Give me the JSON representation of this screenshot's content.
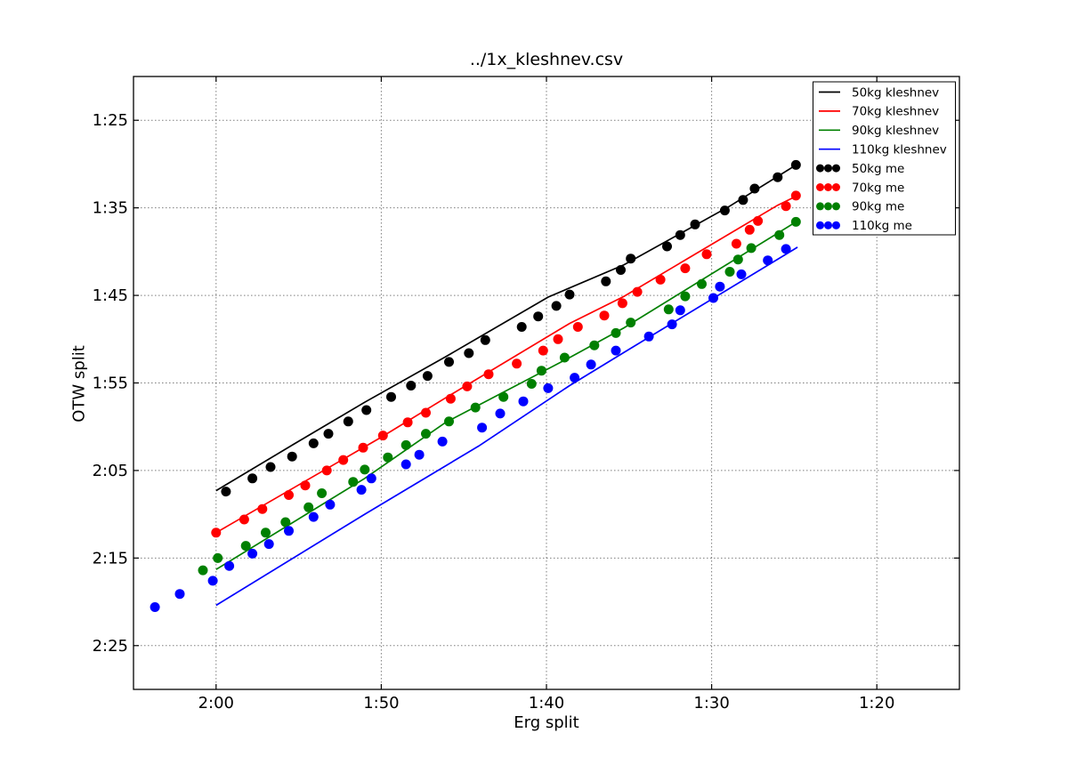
{
  "figure": {
    "background_color": "#ffffff",
    "axes_frame_color": "#000000",
    "grid_style": "dotted"
  },
  "chart_data": {
    "type": "line",
    "title": "../1x_kleshnev.csv",
    "xlabel": "Erg split",
    "ylabel": "OTW split",
    "grid": true,
    "legend_position": "upper right",
    "x_axis": {
      "min": 75,
      "max": 125,
      "reversed": true,
      "unit": "seconds per 500m",
      "ticks": [
        {
          "value": 120,
          "label": "2:00"
        },
        {
          "value": 110,
          "label": "1:50"
        },
        {
          "value": 100,
          "label": "1:40"
        },
        {
          "value": 90,
          "label": "1:30"
        },
        {
          "value": 80,
          "label": "1:20"
        }
      ]
    },
    "y_axis": {
      "min": 80,
      "max": 150,
      "unit": "seconds per 500m",
      "ticks": [
        {
          "value": 85,
          "label": "1:25"
        },
        {
          "value": 95,
          "label": "1:35"
        },
        {
          "value": 105,
          "label": "1:45"
        },
        {
          "value": 115,
          "label": "1:55"
        },
        {
          "value": 125,
          "label": "2:05"
        },
        {
          "value": 135,
          "label": "2:15"
        },
        {
          "value": 145,
          "label": "2:25"
        }
      ]
    },
    "series": [
      {
        "name": "50kg kleshnev",
        "type": "line",
        "color": "#000000",
        "points": [
          [
            120,
            127.3
          ],
          [
            115.3,
            122.0
          ],
          [
            111,
            117.2
          ],
          [
            106.1,
            112.0
          ],
          [
            99.9,
            105.2
          ],
          [
            95.3,
            101.5
          ],
          [
            88.9,
            94.8
          ],
          [
            84.8,
            90.0
          ]
        ]
      },
      {
        "name": "70kg kleshnev",
        "type": "line",
        "color": "#ff0000",
        "points": [
          [
            120,
            132.1
          ],
          [
            110,
            121.2
          ],
          [
            106.1,
            116.7
          ],
          [
            98.6,
            108.2
          ],
          [
            95.3,
            105.1
          ],
          [
            86,
            94.7
          ],
          [
            84.8,
            93.6
          ]
        ]
      },
      {
        "name": "90kg kleshnev",
        "type": "line",
        "color": "#008000",
        "points": [
          [
            120,
            136.3
          ],
          [
            111,
            125.9
          ],
          [
            106.1,
            119.5
          ],
          [
            98.6,
            112.1
          ],
          [
            95.3,
            108.7
          ],
          [
            84.8,
            96.5
          ]
        ]
      },
      {
        "name": "110kg kleshnev",
        "type": "line",
        "color": "#0000ff",
        "points": [
          [
            120,
            140.4
          ],
          [
            111,
            130.0
          ],
          [
            104.1,
            122.2
          ],
          [
            98.6,
            115.3
          ],
          [
            95.3,
            111.5
          ],
          [
            84.8,
            99.5
          ]
        ]
      },
      {
        "name": "50kg me",
        "type": "scatter",
        "color": "#000000",
        "points": [
          [
            119.4,
            127.4
          ],
          [
            117.8,
            125.9
          ],
          [
            116.7,
            124.6
          ],
          [
            115.4,
            123.4
          ],
          [
            114.1,
            121.9
          ],
          [
            113.2,
            120.8
          ],
          [
            112.0,
            119.4
          ],
          [
            110.9,
            118.1
          ],
          [
            109.4,
            116.6
          ],
          [
            108.2,
            115.3
          ],
          [
            107.2,
            114.2
          ],
          [
            105.9,
            112.6
          ],
          [
            104.7,
            111.6
          ],
          [
            103.7,
            110.1
          ],
          [
            101.5,
            108.6
          ],
          [
            100.5,
            107.4
          ],
          [
            99.4,
            106.2
          ],
          [
            98.6,
            104.9
          ],
          [
            96.4,
            103.4
          ],
          [
            95.5,
            102.1
          ],
          [
            94.9,
            100.8
          ],
          [
            92.7,
            99.4
          ],
          [
            91.9,
            98.1
          ],
          [
            91.0,
            96.9
          ],
          [
            89.2,
            95.3
          ],
          [
            88.1,
            94.1
          ],
          [
            87.4,
            92.8
          ],
          [
            86.0,
            91.5
          ],
          [
            84.9,
            90.1
          ]
        ]
      },
      {
        "name": "70kg me",
        "type": "scatter",
        "color": "#ff0000",
        "points": [
          [
            120.0,
            132.1
          ],
          [
            118.3,
            130.6
          ],
          [
            117.2,
            129.4
          ],
          [
            115.6,
            127.8
          ],
          [
            114.6,
            126.7
          ],
          [
            113.3,
            125.0
          ],
          [
            112.3,
            123.8
          ],
          [
            111.1,
            122.4
          ],
          [
            109.9,
            121.0
          ],
          [
            108.4,
            119.5
          ],
          [
            107.3,
            118.4
          ],
          [
            105.8,
            116.8
          ],
          [
            104.8,
            115.4
          ],
          [
            103.5,
            114.0
          ],
          [
            101.8,
            112.8
          ],
          [
            100.2,
            111.3
          ],
          [
            99.3,
            110.0
          ],
          [
            98.1,
            108.6
          ],
          [
            96.5,
            107.3
          ],
          [
            95.4,
            105.9
          ],
          [
            94.5,
            104.6
          ],
          [
            93.1,
            103.2
          ],
          [
            91.6,
            101.9
          ],
          [
            90.3,
            100.3
          ],
          [
            88.5,
            99.1
          ],
          [
            87.7,
            97.5
          ],
          [
            87.2,
            96.5
          ],
          [
            85.5,
            94.8
          ],
          [
            84.9,
            93.6
          ]
        ]
      },
      {
        "name": "90kg me",
        "type": "scatter",
        "color": "#008000",
        "points": [
          [
            120.8,
            136.4
          ],
          [
            119.9,
            135.0
          ],
          [
            118.2,
            133.6
          ],
          [
            117.0,
            132.1
          ],
          [
            115.8,
            130.9
          ],
          [
            114.4,
            129.2
          ],
          [
            113.6,
            127.6
          ],
          [
            111.7,
            126.3
          ],
          [
            111.0,
            124.9
          ],
          [
            109.6,
            123.5
          ],
          [
            108.5,
            122.1
          ],
          [
            107.3,
            120.8
          ],
          [
            105.9,
            119.4
          ],
          [
            104.3,
            117.8
          ],
          [
            102.6,
            116.6
          ],
          [
            100.9,
            115.1
          ],
          [
            100.3,
            113.6
          ],
          [
            98.9,
            112.1
          ],
          [
            97.1,
            110.7
          ],
          [
            95.8,
            109.3
          ],
          [
            94.9,
            108.1
          ],
          [
            92.6,
            106.6
          ],
          [
            91.6,
            105.1
          ],
          [
            90.6,
            103.7
          ],
          [
            88.9,
            102.3
          ],
          [
            88.4,
            100.9
          ],
          [
            87.6,
            99.6
          ],
          [
            85.9,
            98.1
          ],
          [
            84.9,
            96.6
          ]
        ]
      },
      {
        "name": "110kg me",
        "type": "scatter",
        "color": "#0000ff",
        "points": [
          [
            123.7,
            140.6
          ],
          [
            122.2,
            139.1
          ],
          [
            120.2,
            137.6
          ],
          [
            119.2,
            135.9
          ],
          [
            117.8,
            134.5
          ],
          [
            116.8,
            133.4
          ],
          [
            115.6,
            131.9
          ],
          [
            114.1,
            130.3
          ],
          [
            113.1,
            128.9
          ],
          [
            111.2,
            127.2
          ],
          [
            110.6,
            125.9
          ],
          [
            108.5,
            124.3
          ],
          [
            107.7,
            123.2
          ],
          [
            106.3,
            121.7
          ],
          [
            103.9,
            120.1
          ],
          [
            102.8,
            118.5
          ],
          [
            101.4,
            117.1
          ],
          [
            99.9,
            115.6
          ],
          [
            98.3,
            114.4
          ],
          [
            97.3,
            112.9
          ],
          [
            95.8,
            111.3
          ],
          [
            93.8,
            109.7
          ],
          [
            92.4,
            108.3
          ],
          [
            91.9,
            106.7
          ],
          [
            89.9,
            105.3
          ],
          [
            89.5,
            104.0
          ],
          [
            88.2,
            102.6
          ],
          [
            86.6,
            101.0
          ],
          [
            85.5,
            99.7
          ]
        ]
      }
    ]
  }
}
